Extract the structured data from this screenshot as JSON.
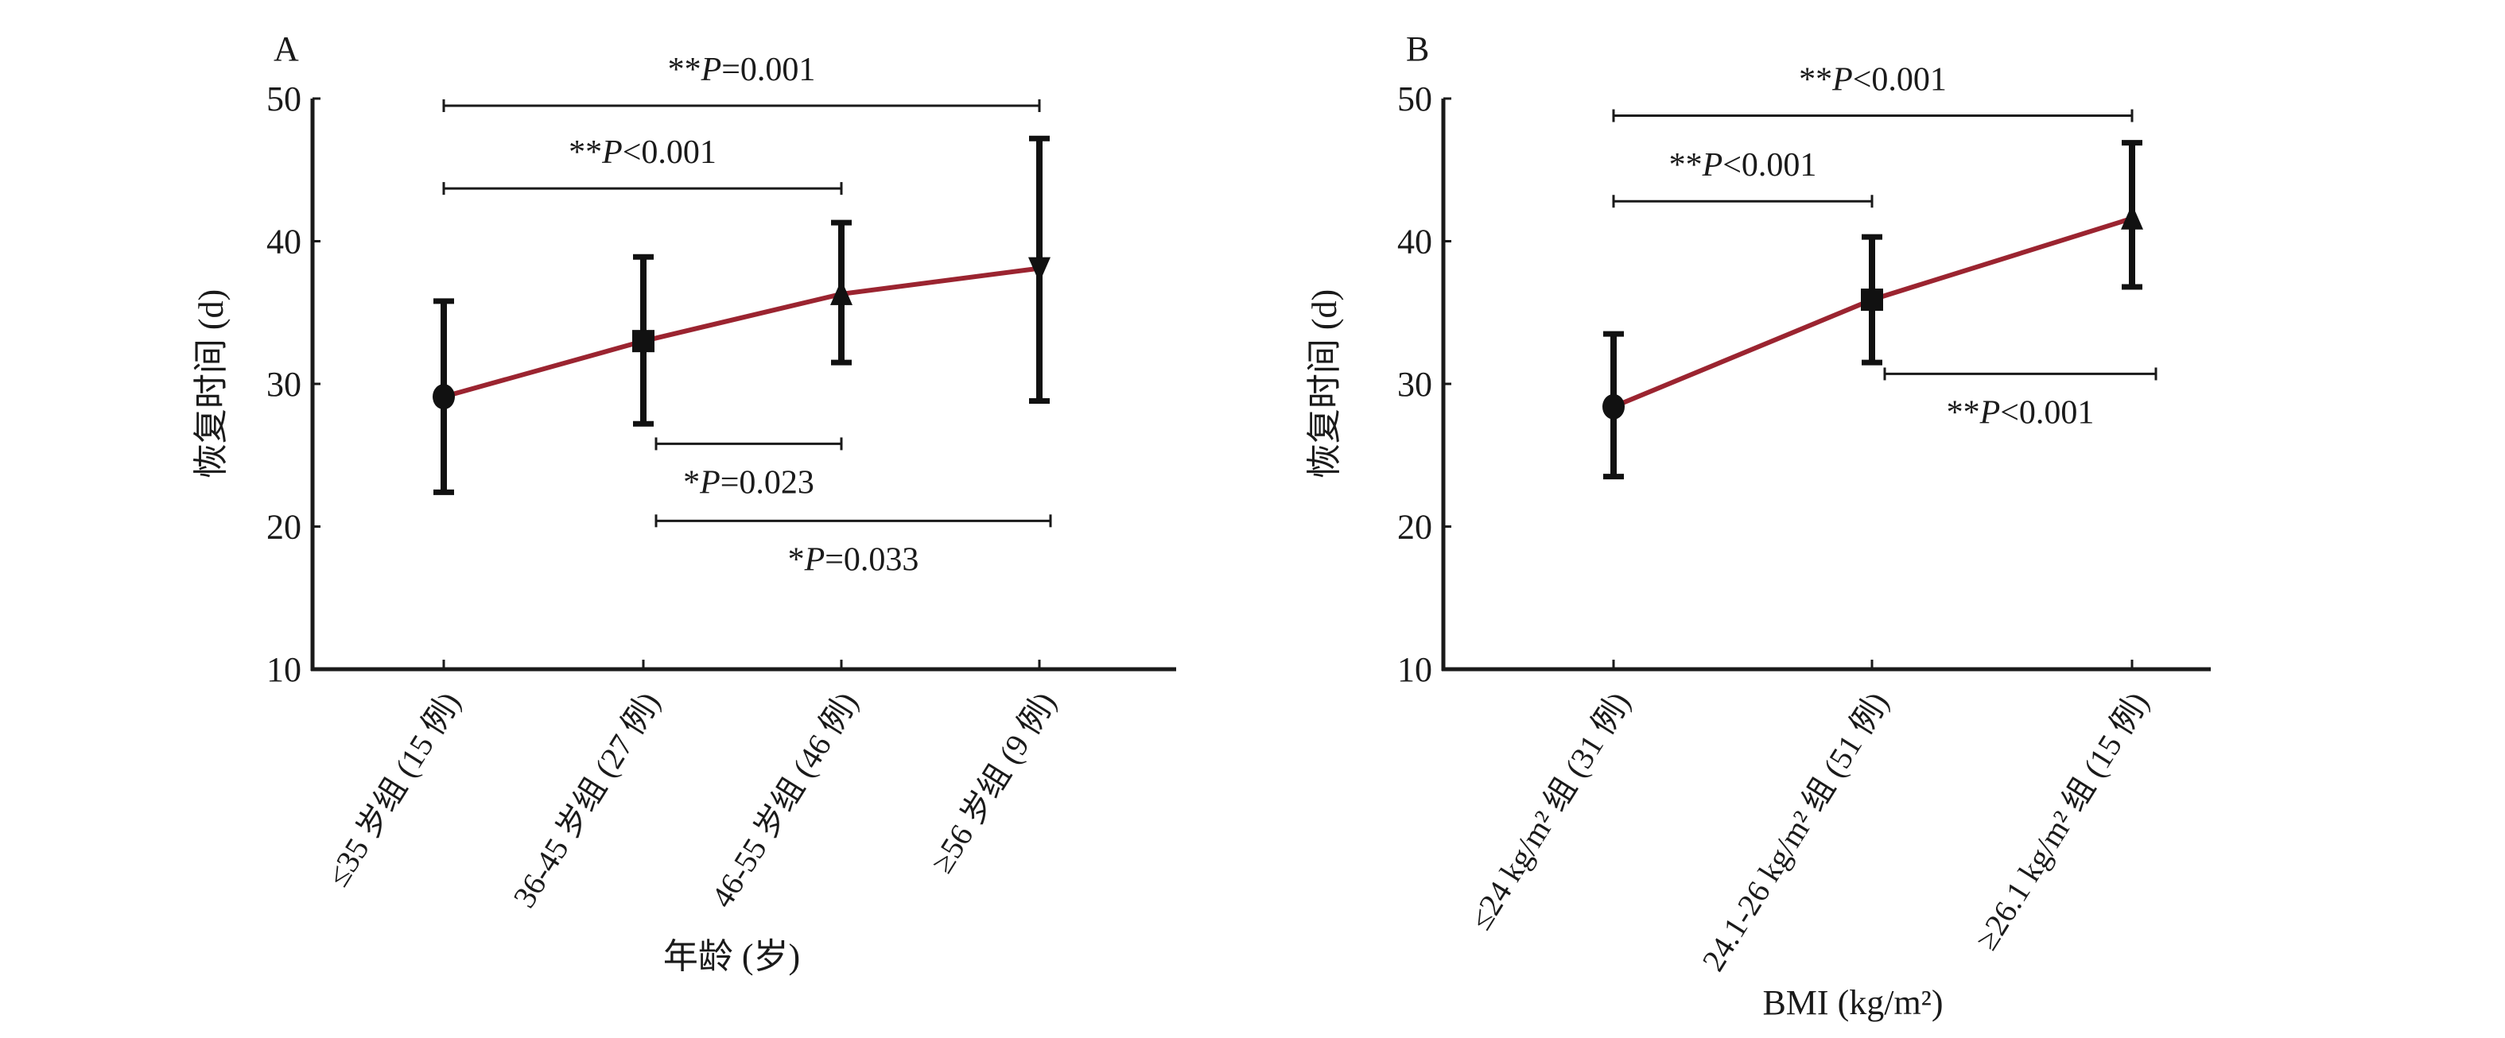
{
  "chart_data": [
    {
      "type": "line",
      "panel_label": "A",
      "xlabel": "年龄 (岁)",
      "ylabel": "恢复时间 (d)",
      "ylim": [
        10,
        50
      ],
      "yticks": [
        "10",
        "20",
        "30",
        "40",
        "50"
      ],
      "categories": [
        "≤35 岁组 (15 例)",
        "36-45 岁组 (27 例)",
        "46-55 岁组 (46 例)",
        "≥56 岁组 (9 例)"
      ],
      "markers": [
        "circle",
        "square",
        "triangle-up",
        "triangle-down"
      ],
      "series": [
        {
          "name": "恢复时间",
          "color": "#9b2430",
          "values": [
            29.1,
            33.0,
            36.3,
            38.1
          ],
          "err_low": [
            22.4,
            27.2,
            31.5,
            28.8
          ],
          "err_high": [
            35.8,
            38.9,
            41.3,
            47.2
          ]
        }
      ],
      "brackets": [
        {
          "from": 0,
          "to": 3,
          "y": 49.5,
          "prefix": "**",
          "p": "P",
          "rest": "=0.001",
          "label_pos": "above"
        },
        {
          "from": 0,
          "to": 2,
          "y": 43.7,
          "prefix": "**",
          "p": "P",
          "rest": "<0.001",
          "label_pos": "above"
        },
        {
          "from": 1,
          "to": 2,
          "y": 25.8,
          "prefix": "*",
          "p": "P",
          "rest": "=0.023",
          "label_pos": "below"
        },
        {
          "from": 1,
          "to": 3,
          "y": 20.4,
          "prefix": "*",
          "p": "P",
          "rest": "=0.033",
          "label_pos": "below"
        }
      ]
    },
    {
      "type": "line",
      "panel_label": "B",
      "xlabel": "BMI (kg/m²)",
      "ylabel": "恢复时间 (d)",
      "ylim": [
        10,
        50
      ],
      "yticks": [
        "10",
        "20",
        "30",
        "40",
        "50"
      ],
      "categories": [
        "≤24 kg/m² 组 (31 例)",
        "24.1-26 kg/m² 组 (51 例)",
        "≥26.1 kg/m² 组 (15 例)"
      ],
      "markers": [
        "circle",
        "square",
        "triangle-up"
      ],
      "series": [
        {
          "name": "恢复时间",
          "color": "#9b2430",
          "values": [
            28.4,
            35.9,
            41.6
          ],
          "err_low": [
            23.5,
            31.5,
            36.8
          ],
          "err_high": [
            33.5,
            40.3,
            46.9
          ]
        }
      ],
      "brackets": [
        {
          "from": 0,
          "to": 2,
          "y": 48.8,
          "prefix": "**",
          "p": "P",
          "rest": "<0.001",
          "label_pos": "above"
        },
        {
          "from": 0,
          "to": 1,
          "y": 42.8,
          "prefix": "**",
          "p": "P",
          "rest": "<0.001",
          "label_pos": "above"
        },
        {
          "from": 1,
          "to": 2,
          "y": 30.7,
          "prefix": "**",
          "p": "P",
          "rest": "<0.001",
          "label_pos": "below"
        }
      ]
    }
  ]
}
